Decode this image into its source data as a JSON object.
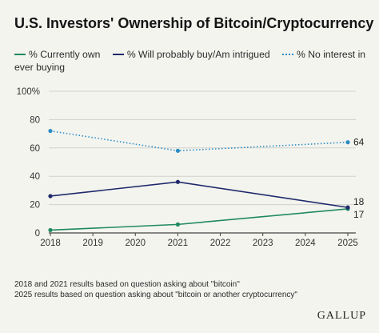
{
  "chart_data": {
    "type": "line",
    "title": "U.S. Investors' Ownership of Bitcoin/Cryptocurrency",
    "x": [
      "2018",
      "2019",
      "2020",
      "2021",
      "2022",
      "2023",
      "2024",
      "2025"
    ],
    "ylim": [
      0,
      100
    ],
    "yticks": [
      "0",
      "20",
      "40",
      "60",
      "80",
      "100%"
    ],
    "grid": true,
    "legend_position": "top",
    "series": [
      {
        "name": "% Currently own",
        "color": "#1f8a5f",
        "style": "solid",
        "points": [
          [
            2018,
            2
          ],
          [
            2021,
            6
          ],
          [
            2025,
            17
          ]
        ],
        "end_label": "17"
      },
      {
        "name": "% Will probably buy/Am intrigued",
        "color": "#1f2a6b",
        "style": "solid",
        "points": [
          [
            2018,
            26
          ],
          [
            2021,
            36
          ],
          [
            2025,
            18
          ]
        ],
        "end_label": "18"
      },
      {
        "name": "% No interest in ever buying",
        "color": "#2b8cc4",
        "style": "dotted",
        "points": [
          [
            2018,
            72
          ],
          [
            2021,
            58
          ],
          [
            2025,
            64
          ]
        ],
        "end_label": "64"
      }
    ]
  },
  "footnotes": [
    "2018 and 2021 results based on question asking about \"bitcoin\"",
    "2025 results based on question asking about \"bitcoin or another cryptocurrency\""
  ],
  "brand": "GALLUP"
}
